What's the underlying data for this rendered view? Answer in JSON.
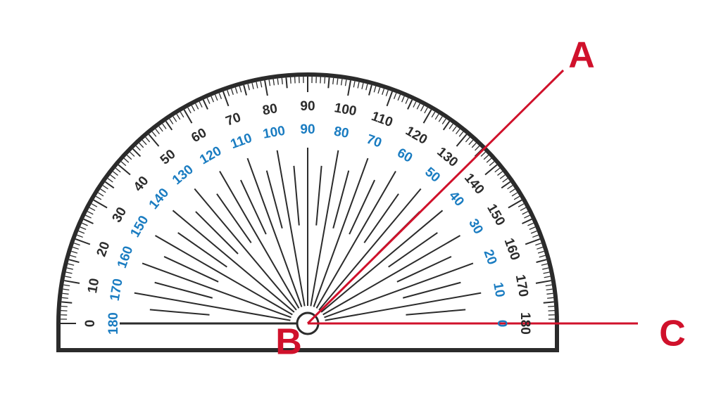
{
  "points": {
    "a": "A",
    "b": "B",
    "c": "C"
  },
  "outer_scale": [
    0,
    10,
    20,
    30,
    40,
    50,
    60,
    70,
    80,
    90,
    100,
    110,
    120,
    130,
    140,
    150,
    160,
    170,
    180
  ],
  "inner_scale": [
    180,
    170,
    160,
    150,
    140,
    130,
    120,
    110,
    100,
    90,
    80,
    70,
    60,
    50,
    40,
    30,
    20,
    10,
    0
  ]
}
